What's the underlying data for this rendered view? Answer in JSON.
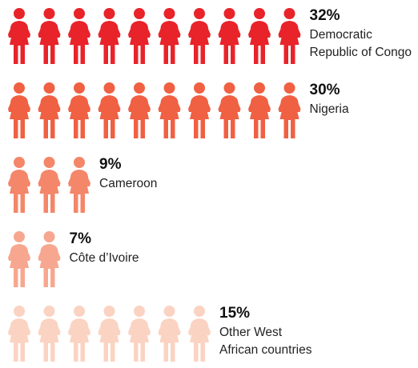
{
  "chart_data": {
    "type": "pictogram",
    "unit": "figure",
    "categories": [
      {
        "percent": 32,
        "percent_label": "32%",
        "figures": 10,
        "label_lines": [
          "Democratic",
          "Republic of Congo"
        ],
        "color": "#e8232a"
      },
      {
        "percent": 30,
        "percent_label": "30%",
        "figures": 10,
        "label_lines": [
          "Nigeria"
        ],
        "color": "#f06043"
      },
      {
        "percent": 9,
        "percent_label": "9%",
        "figures": 3,
        "label_lines": [
          "Cameroon"
        ],
        "color": "#f4866a"
      },
      {
        "percent": 7,
        "percent_label": "7%",
        "figures": 2,
        "label_lines": [
          "Côte d’Ivoire"
        ],
        "color": "#f7a78f"
      },
      {
        "percent": 15,
        "percent_label": "15%",
        "figures": 7,
        "label_lines": [
          "Other West",
          "African countries"
        ],
        "color": "#fbd3c2"
      }
    ]
  }
}
